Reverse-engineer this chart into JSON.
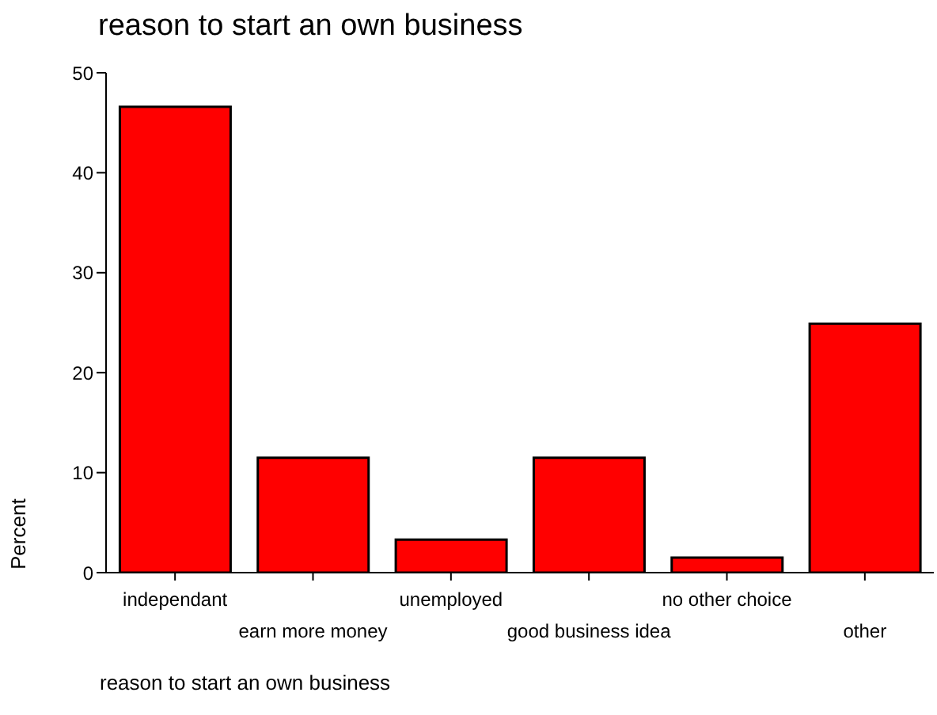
{
  "chart_data": {
    "type": "bar",
    "title": "reason to start an own business",
    "xlabel": "reason to start an own business",
    "ylabel": "Percent",
    "categories": [
      "independant",
      "earn more money",
      "unemployed",
      "good business idea",
      "no other choice",
      "other"
    ],
    "values": [
      46.6,
      11.5,
      3.3,
      11.5,
      1.5,
      24.9
    ],
    "color": "#ff0000",
    "ylim": [
      0,
      50
    ],
    "yticks": [
      0,
      10,
      20,
      30,
      40,
      50
    ],
    "grid": false,
    "legend": false
  }
}
